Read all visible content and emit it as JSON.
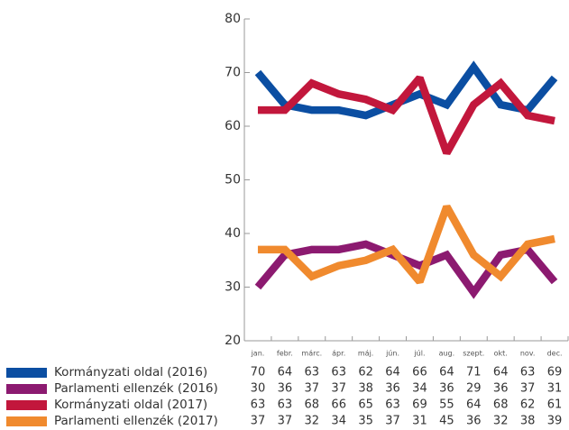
{
  "chart_data": {
    "type": "line",
    "categories": [
      "jan.",
      "febr.",
      "márc.",
      "ápr.",
      "máj.",
      "jún.",
      "júl.",
      "aug.",
      "szept.",
      "okt.",
      "nov.",
      "dec."
    ],
    "series": [
      {
        "name": "Kormányzati oldal (2016)",
        "color": "#0b4ea2",
        "values": [
          70,
          64,
          63,
          63,
          62,
          64,
          66,
          64,
          71,
          64,
          63,
          69
        ]
      },
      {
        "name": "Parlamenti ellenzék (2016)",
        "color": "#8c1a70",
        "values": [
          30,
          36,
          37,
          37,
          38,
          36,
          34,
          36,
          29,
          36,
          37,
          31
        ]
      },
      {
        "name": "Kormányzati oldal (2017)",
        "color": "#c2173c",
        "values": [
          63,
          63,
          68,
          66,
          65,
          63,
          69,
          55,
          64,
          68,
          62,
          61
        ]
      },
      {
        "name": "Parlamenti ellenzék (2017)",
        "color": "#f08a2e",
        "values": [
          37,
          37,
          32,
          34,
          35,
          37,
          31,
          45,
          36,
          32,
          38,
          39
        ]
      }
    ],
    "ylim": [
      20,
      80
    ],
    "yticks": [
      20,
      30,
      40,
      50,
      60,
      70,
      80
    ]
  }
}
